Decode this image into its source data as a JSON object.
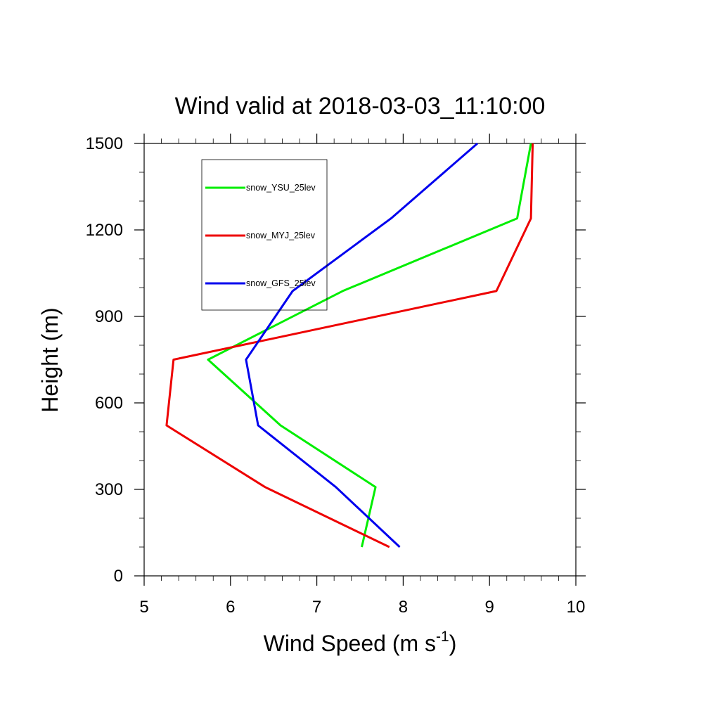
{
  "chart_data": {
    "type": "line",
    "title": "Wind valid at 2018-03-03_11:10:00",
    "xlabel": "Wind Speed (m s",
    "xlabel_sup": "-1",
    "xlabel_close": ")",
    "ylabel": "Height (m)",
    "xlim": [
      5,
      10
    ],
    "ylim": [
      0,
      1500
    ],
    "x_ticks": [
      5,
      6,
      7,
      8,
      9,
      10
    ],
    "y_ticks": [
      0,
      300,
      600,
      900,
      1200,
      1500
    ],
    "x_tick_labels": [
      "5",
      "6",
      "7",
      "8",
      "9",
      "10"
    ],
    "y_tick_labels": [
      "0",
      "300",
      "600",
      "900",
      "1200",
      "1500"
    ],
    "grid": false,
    "legend_position": "top-left",
    "series": [
      {
        "name": "snow_YSU_25lev",
        "color": "#00ee00",
        "points": [
          [
            7.52,
            100
          ],
          [
            7.68,
            308
          ],
          [
            6.58,
            522
          ],
          [
            5.74,
            750
          ],
          [
            7.3,
            988
          ],
          [
            9.32,
            1240
          ],
          [
            9.48,
            1500
          ]
        ]
      },
      {
        "name": "snow_MYJ_25lev",
        "color": "#ee0000",
        "points": [
          [
            7.84,
            100
          ],
          [
            6.4,
            308
          ],
          [
            5.26,
            522
          ],
          [
            5.34,
            750
          ],
          [
            9.08,
            988
          ],
          [
            9.48,
            1240
          ],
          [
            9.5,
            1500
          ]
        ]
      },
      {
        "name": "snow_GFS_25lev",
        "color": "#0000ee",
        "points": [
          [
            7.96,
            100
          ],
          [
            7.22,
            308
          ],
          [
            6.32,
            522
          ],
          [
            6.18,
            750
          ],
          [
            6.72,
            988
          ],
          [
            7.86,
            1240
          ],
          [
            8.86,
            1500
          ]
        ]
      }
    ]
  }
}
